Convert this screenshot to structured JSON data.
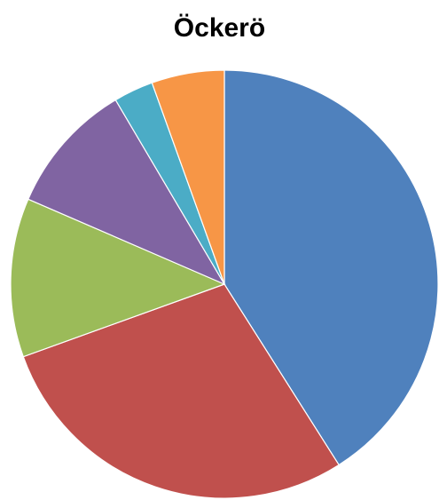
{
  "chart_data": {
    "type": "pie",
    "title": "Öckerö",
    "legend": "none",
    "slices": [
      {
        "value": 41.0,
        "color": "#4F81BD"
      },
      {
        "value": 28.5,
        "color": "#C0504D"
      },
      {
        "value": 12.0,
        "color": "#9BBB59"
      },
      {
        "value": 10.0,
        "color": "#8064A2"
      },
      {
        "value": 3.0,
        "color": "#4BACC6"
      },
      {
        "value": 5.5,
        "color": "#F79646"
      }
    ]
  }
}
